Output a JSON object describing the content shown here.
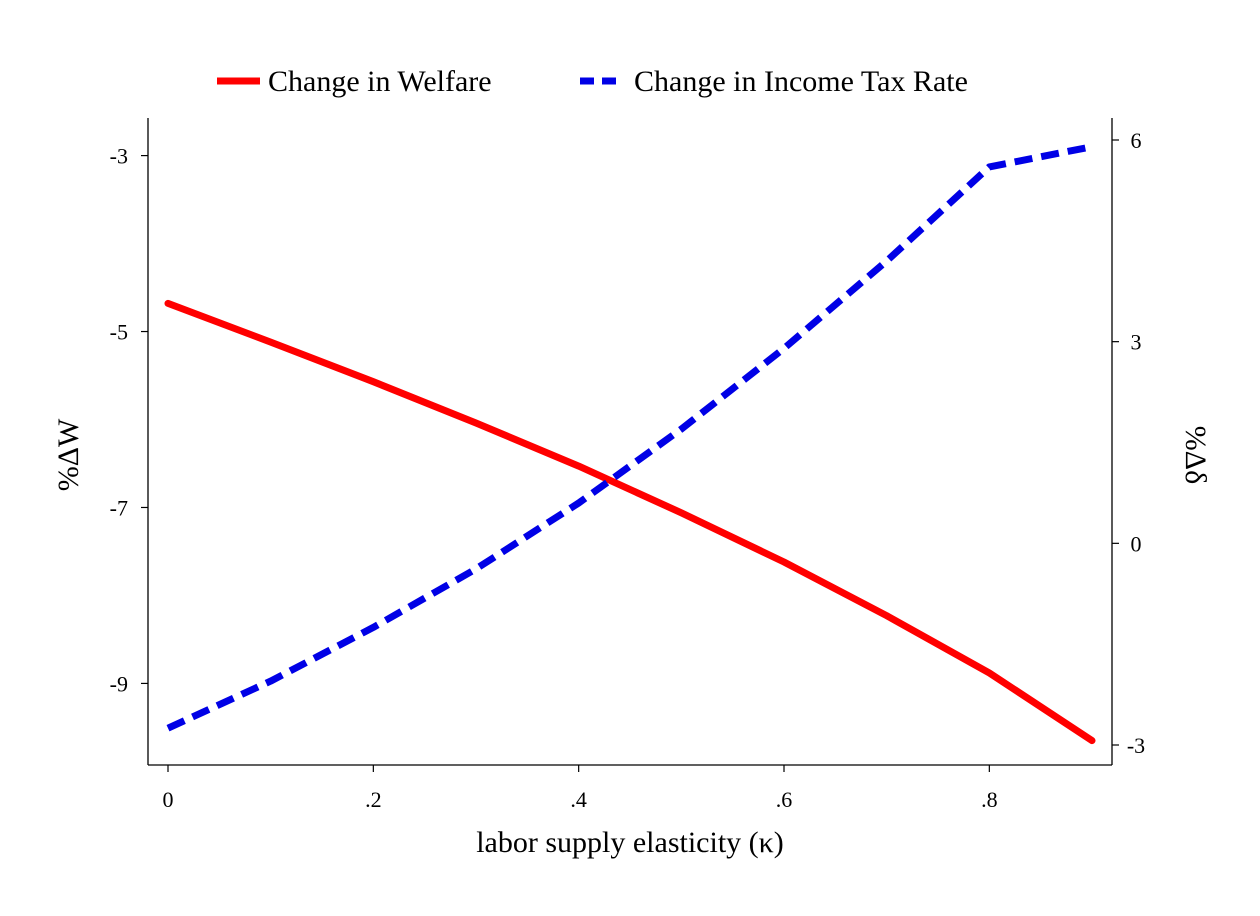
{
  "chart_data": {
    "type": "line",
    "title": "",
    "xlabel": "labor supply elasticity (κ)",
    "ylabel_left": "%ΔW",
    "ylabel_right": "%Δδ",
    "xlim": [
      0,
      0.9
    ],
    "ylim_left": [
      -9.7,
      -2.8
    ],
    "ylim_right": [
      -3.0,
      6.0
    ],
    "x_ticks": [
      {
        "value": 0,
        "label": "0"
      },
      {
        "value": 0.2,
        "label": ".2"
      },
      {
        "value": 0.4,
        "label": ".4"
      },
      {
        "value": 0.6,
        "label": ".6"
      },
      {
        "value": 0.8,
        "label": ".8"
      }
    ],
    "y_left_ticks": [
      {
        "value": -3,
        "label": "-3"
      },
      {
        "value": -5,
        "label": "-5"
      },
      {
        "value": -7,
        "label": "-7"
      },
      {
        "value": -9,
        "label": "-9"
      }
    ],
    "y_right_ticks": [
      {
        "value": 6,
        "label": "6"
      },
      {
        "value": 3,
        "label": "3"
      },
      {
        "value": 0,
        "label": "0"
      },
      {
        "value": -3,
        "label": "-3"
      }
    ],
    "grid": false,
    "legend_position": "top-center",
    "series": [
      {
        "name": "Change in Welfare",
        "axis": "left",
        "color": "#ff0000",
        "style": "solid",
        "x": [
          0,
          0.1,
          0.2,
          0.3,
          0.4,
          0.5,
          0.6,
          0.7,
          0.8,
          0.9
        ],
        "y": [
          -4.68,
          -5.12,
          -5.57,
          -6.04,
          -6.53,
          -7.06,
          -7.62,
          -8.23,
          -8.88,
          -9.65
        ]
      },
      {
        "name": "Change in Income Tax Rate",
        "axis": "right",
        "color": "#0000e6",
        "style": "dashed",
        "x": [
          0,
          0.1,
          0.2,
          0.3,
          0.4,
          0.5,
          0.6,
          0.7,
          0.8,
          0.9
        ],
        "y": [
          -2.75,
          -2.05,
          -1.25,
          -0.38,
          0.6,
          1.7,
          2.9,
          4.2,
          5.6,
          5.9
        ]
      }
    ]
  }
}
